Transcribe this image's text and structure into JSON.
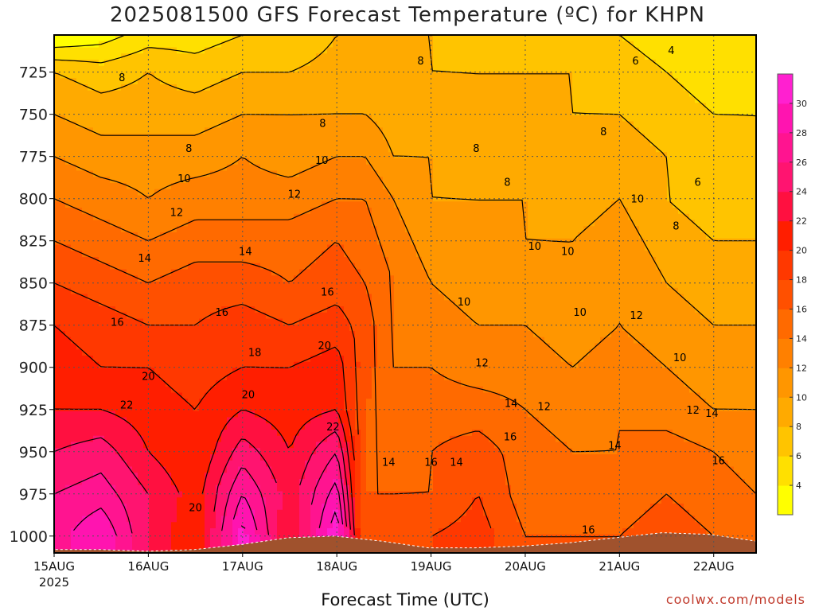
{
  "chart_data": {
    "type": "heatmap",
    "title": "2025081500 GFS Forecast Temperature (ºC) for KHPN",
    "xlabel": "Forecast Time (UTC)",
    "ylabel": "",
    "x_ticks": [
      "15AUG",
      "16AUG",
      "17AUG",
      "18AUG",
      "19AUG",
      "20AUG",
      "21AUG",
      "22AUG"
    ],
    "x_year": "2025",
    "x_range_days": [
      0,
      7.45
    ],
    "y_ticks": [
      725,
      750,
      775,
      800,
      825,
      850,
      875,
      900,
      925,
      950,
      975,
      1000
    ],
    "y_range_hpa": [
      703,
      1010
    ],
    "y_axis": "pressure (inverted, top = low pressure)",
    "grid": "dotted",
    "colorbar": {
      "placement": "right",
      "levels": [
        2,
        4,
        6,
        8,
        10,
        12,
        14,
        16,
        18,
        20,
        22,
        24,
        26,
        28,
        30,
        32
      ],
      "labels": [
        "4",
        "6",
        "8",
        "10",
        "12",
        "14",
        "16",
        "18",
        "20",
        "22",
        "24",
        "26",
        "28",
        "30"
      ],
      "colors": [
        "#ffff00",
        "#ffe000",
        "#ffc400",
        "#ffaa00",
        "#ff9600",
        "#ff8000",
        "#ff6a00",
        "#ff5000",
        "#ff3800",
        "#ff1e00",
        "#ff1040",
        "#ff1470",
        "#ff1490",
        "#ff14b0",
        "#ff20d0"
      ]
    },
    "surface_pressure_hpa": [
      1008,
      1008,
      1009,
      1008,
      1005,
      1001,
      1000,
      1003,
      1007,
      1007,
      1006,
      1004,
      1001,
      998,
      999,
      1003
    ],
    "series": [
      {
        "day": 0.0,
        "t": [
          2,
          8,
          10,
          12,
          14,
          16,
          18,
          20,
          21,
          22,
          24,
          26,
          27
        ]
      },
      {
        "day": 0.5,
        "t": [
          3,
          7,
          9,
          11,
          13,
          15,
          17,
          19,
          20,
          22,
          25,
          27,
          30
        ]
      },
      {
        "day": 1.0,
        "t": [
          5,
          8,
          9,
          11,
          12,
          14,
          16,
          18,
          20,
          21,
          22,
          24,
          24
        ]
      },
      {
        "day": 1.5,
        "t": [
          5,
          7,
          9,
          11,
          13,
          15,
          17,
          18,
          19,
          20,
          20,
          21,
          20
        ]
      },
      {
        "day": 2.0,
        "t": [
          6,
          8,
          10,
          12,
          13,
          15,
          17,
          19,
          20,
          22,
          25,
          28,
          31
        ]
      },
      {
        "day": 2.5,
        "t": [
          6,
          8,
          10,
          11,
          13,
          15,
          16,
          18,
          20,
          21,
          22,
          23,
          22
        ]
      },
      {
        "day": 3.0,
        "t": [
          8,
          9,
          10,
          12,
          14,
          16,
          17,
          19,
          21,
          22,
          26,
          29,
          32
        ]
      },
      {
        "day": 3.3,
        "t": [
          8,
          9,
          10,
          12,
          14,
          15,
          16,
          17,
          17,
          16,
          16,
          16,
          16
        ]
      },
      {
        "day": 3.6,
        "t": [
          8,
          9,
          9,
          10,
          12,
          13,
          14,
          14,
          14,
          14,
          15,
          16,
          17
        ]
      },
      {
        "day": 4.0,
        "t": [
          8,
          8,
          9,
          10,
          10,
          11,
          12,
          13,
          14,
          15,
          16,
          16,
          18
        ]
      },
      {
        "day": 4.5,
        "t": [
          7,
          8,
          8,
          9,
          10,
          10,
          11,
          12,
          13,
          15,
          17,
          18,
          19
        ]
      },
      {
        "day": 5.0,
        "t": [
          7,
          8,
          8,
          9,
          10,
          10,
          11,
          12,
          13,
          14,
          15,
          15,
          16
        ]
      },
      {
        "day": 5.5,
        "t": [
          7,
          8,
          8,
          9,
          9,
          10,
          10,
          11,
          12,
          13,
          14,
          15,
          16
        ]
      },
      {
        "day": 6.0,
        "t": [
          6,
          7,
          8,
          9,
          10,
          11,
          12,
          12,
          13,
          14,
          14,
          15,
          16
        ]
      },
      {
        "day": 6.5,
        "t": [
          5,
          6,
          7,
          8,
          8,
          9,
          10,
          11,
          12,
          13,
          15,
          16,
          17
        ]
      },
      {
        "day": 7.0,
        "t": [
          4,
          5,
          6,
          7,
          7,
          8,
          9,
          10,
          11,
          12,
          14,
          15,
          16
        ]
      },
      {
        "day": 7.45,
        "t": [
          4,
          5,
          6,
          6,
          7,
          8,
          9,
          10,
          11,
          12,
          13,
          14,
          15
        ]
      }
    ],
    "series_levels_hpa": [
      703,
      725,
      750,
      775,
      800,
      825,
      850,
      875,
      900,
      925,
      950,
      975,
      1000
    ],
    "contour_labels": [
      {
        "text": "8",
        "day": 0.72,
        "hpa": 728
      },
      {
        "text": "8",
        "day": 1.43,
        "hpa": 770
      },
      {
        "text": "10",
        "day": 1.38,
        "hpa": 788
      },
      {
        "text": "12",
        "day": 1.3,
        "hpa": 808
      },
      {
        "text": "14",
        "day": 0.96,
        "hpa": 835
      },
      {
        "text": "16",
        "day": 0.67,
        "hpa": 873
      },
      {
        "text": "20",
        "day": 1.0,
        "hpa": 905
      },
      {
        "text": "22",
        "day": 0.77,
        "hpa": 922
      },
      {
        "text": "20",
        "day": 1.5,
        "hpa": 983
      },
      {
        "text": "8",
        "day": 2.85,
        "hpa": 755
      },
      {
        "text": "10",
        "day": 2.84,
        "hpa": 777
      },
      {
        "text": "12",
        "day": 2.55,
        "hpa": 797
      },
      {
        "text": "14",
        "day": 2.03,
        "hpa": 831
      },
      {
        "text": "16",
        "day": 1.78,
        "hpa": 867
      },
      {
        "text": "18",
        "day": 2.13,
        "hpa": 891
      },
      {
        "text": "20",
        "day": 2.06,
        "hpa": 916
      },
      {
        "text": "16",
        "day": 2.9,
        "hpa": 855
      },
      {
        "text": "20",
        "day": 2.87,
        "hpa": 887
      },
      {
        "text": "22",
        "day": 2.96,
        "hpa": 935
      },
      {
        "text": "8",
        "day": 3.89,
        "hpa": 718
      },
      {
        "text": "8",
        "day": 4.48,
        "hpa": 770
      },
      {
        "text": "8",
        "day": 4.81,
        "hpa": 790
      },
      {
        "text": "10",
        "day": 5.1,
        "hpa": 828
      },
      {
        "text": "10",
        "day": 4.35,
        "hpa": 861
      },
      {
        "text": "10",
        "day": 5.45,
        "hpa": 831
      },
      {
        "text": "10",
        "day": 5.58,
        "hpa": 867
      },
      {
        "text": "12",
        "day": 4.54,
        "hpa": 897
      },
      {
        "text": "14",
        "day": 4.85,
        "hpa": 921
      },
      {
        "text": "12",
        "day": 5.2,
        "hpa": 923
      },
      {
        "text": "14",
        "day": 3.55,
        "hpa": 956
      },
      {
        "text": "16",
        "day": 4.0,
        "hpa": 956
      },
      {
        "text": "14",
        "day": 4.27,
        "hpa": 956
      },
      {
        "text": "16",
        "day": 4.84,
        "hpa": 941
      },
      {
        "text": "16",
        "day": 5.67,
        "hpa": 996
      },
      {
        "text": "6",
        "day": 6.17,
        "hpa": 718
      },
      {
        "text": "4",
        "day": 6.55,
        "hpa": 712
      },
      {
        "text": "8",
        "day": 5.83,
        "hpa": 760
      },
      {
        "text": "10",
        "day": 6.19,
        "hpa": 800
      },
      {
        "text": "8",
        "day": 6.6,
        "hpa": 816
      },
      {
        "text": "6",
        "day": 6.83,
        "hpa": 790
      },
      {
        "text": "12",
        "day": 6.18,
        "hpa": 869
      },
      {
        "text": "10",
        "day": 6.64,
        "hpa": 894
      },
      {
        "text": "12",
        "day": 6.78,
        "hpa": 925
      },
      {
        "text": "14",
        "day": 5.95,
        "hpa": 946
      },
      {
        "text": "14",
        "day": 6.98,
        "hpa": 927
      },
      {
        "text": "16",
        "day": 7.05,
        "hpa": 955
      }
    ]
  },
  "footer": {
    "credit": "coolwx.com/models"
  }
}
